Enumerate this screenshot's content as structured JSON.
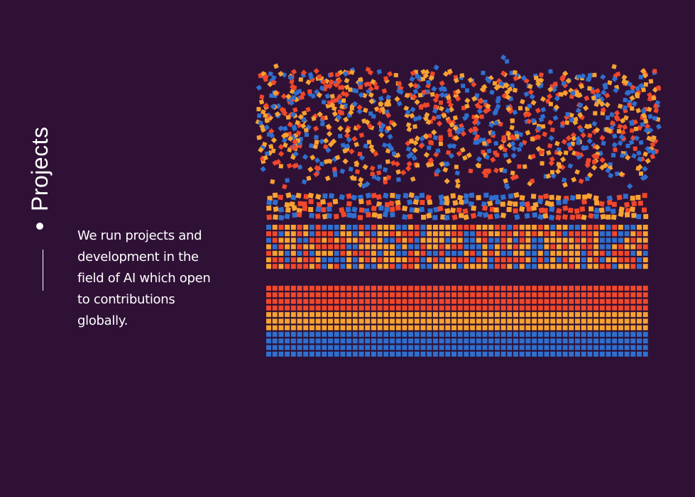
{
  "section": {
    "title": "Projects",
    "description": "We run projects and development in the field of AI which open to contributions globally."
  },
  "colors": {
    "background": "#2f1136",
    "text": "#ffffff",
    "red": "#f0482a",
    "orange": "#f7a231",
    "blue": "#2f6fce"
  },
  "icons": {
    "bullet": "dot-icon"
  }
}
